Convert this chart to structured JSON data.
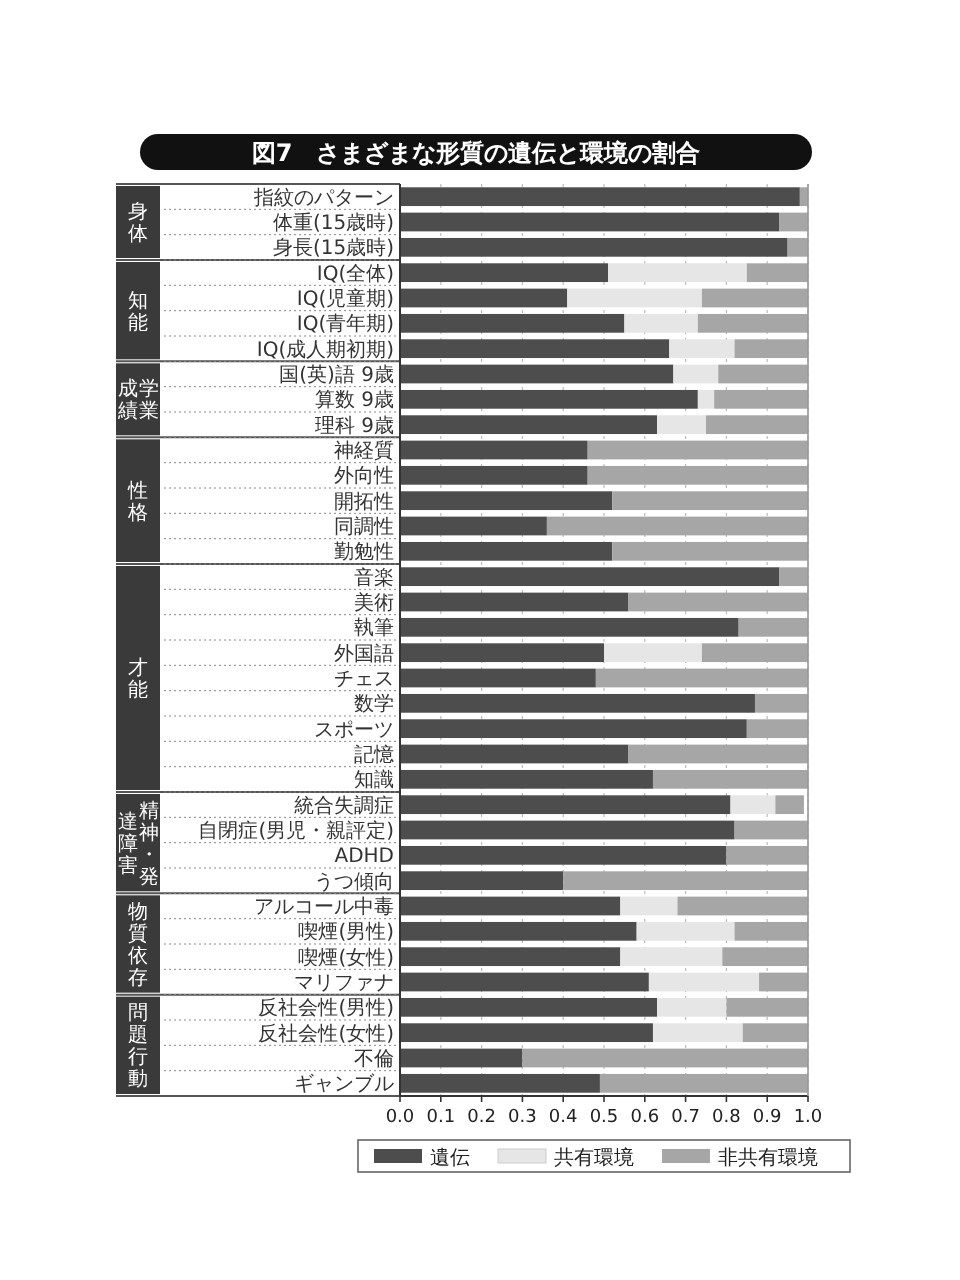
{
  "chart_data": {
    "type": "bar",
    "orientation": "horizontal",
    "stacked": true,
    "title": "図7　さまざまな形質の遺伝と環境の割合",
    "categories": [
      "指紋のパターン",
      "体重(15歳時)",
      "身長(15歳時)",
      "IQ(全体)",
      "IQ(児童期)",
      "IQ(青年期)",
      "IQ(成人期初期)",
      "国(英)語 9歳",
      "算数 9歳",
      "理科 9歳",
      "神経質",
      "外向性",
      "開拓性",
      "同調性",
      "勤勉性",
      "音楽",
      "美術",
      "執筆",
      "外国語",
      "チェス",
      "数学",
      "スポーツ",
      "記憶",
      "知識",
      "統合失調症",
      "自閉症(男児・親評定)",
      "ADHD",
      "うつ傾向",
      "アルコール中毒",
      "喫煙(男性)",
      "喫煙(女性)",
      "マリファナ",
      "反社会性(男性)",
      "反社会性(女性)",
      "不倫",
      "ギャンブル"
    ],
    "series": [
      {
        "name": "遺伝",
        "color": "#4d4d4d",
        "values": [
          0.98,
          0.93,
          0.95,
          0.51,
          0.41,
          0.55,
          0.66,
          0.67,
          0.73,
          0.63,
          0.46,
          0.46,
          0.52,
          0.36,
          0.52,
          0.93,
          0.56,
          0.83,
          0.5,
          0.48,
          0.87,
          0.85,
          0.56,
          0.62,
          0.81,
          0.82,
          0.8,
          0.4,
          0.54,
          0.58,
          0.54,
          0.61,
          0.63,
          0.62,
          0.3,
          0.49
        ]
      },
      {
        "name": "共有環境",
        "color": "#e6e6e6",
        "values": [
          0,
          0,
          0,
          0.34,
          0.33,
          0.18,
          0.16,
          0.11,
          0.04,
          0.12,
          0,
          0,
          0,
          0,
          0,
          0,
          0,
          0,
          0.24,
          0,
          0,
          0,
          0,
          0,
          0.11,
          0,
          0,
          0,
          0.14,
          0.24,
          0.25,
          0.27,
          0.17,
          0.22,
          0,
          0
        ]
      },
      {
        "name": "非共有環境",
        "color": "#a6a6a6",
        "values": [
          0.02,
          0.07,
          0.05,
          0.15,
          0.26,
          0.27,
          0.18,
          0.22,
          0.23,
          0.25,
          0.54,
          0.54,
          0.48,
          0.64,
          0.48,
          0.07,
          0.44,
          0.17,
          0.26,
          0.52,
          0.13,
          0.15,
          0.44,
          0.38,
          0.07,
          0.18,
          0.2,
          0.6,
          0.32,
          0.18,
          0.21,
          0.12,
          0.2,
          0.16,
          0.7,
          0.51
        ]
      }
    ],
    "annotations": [
      "身体",
      "知能",
      "学業成績",
      "性格",
      "才能",
      "精神・発達障害",
      "物質依存",
      "問題行動"
    ],
    "xlim": [
      0,
      1
    ],
    "xticks": [
      {
        "value": 0,
        "label": "0.0"
      },
      0.1,
      0.2,
      0.3,
      0.4,
      0.5,
      0.6,
      0.7,
      0.8,
      0.9,
      {
        "value": 1,
        "label": "1.0"
      }
    ],
    "grid": "x",
    "legend": "bottom"
  }
}
